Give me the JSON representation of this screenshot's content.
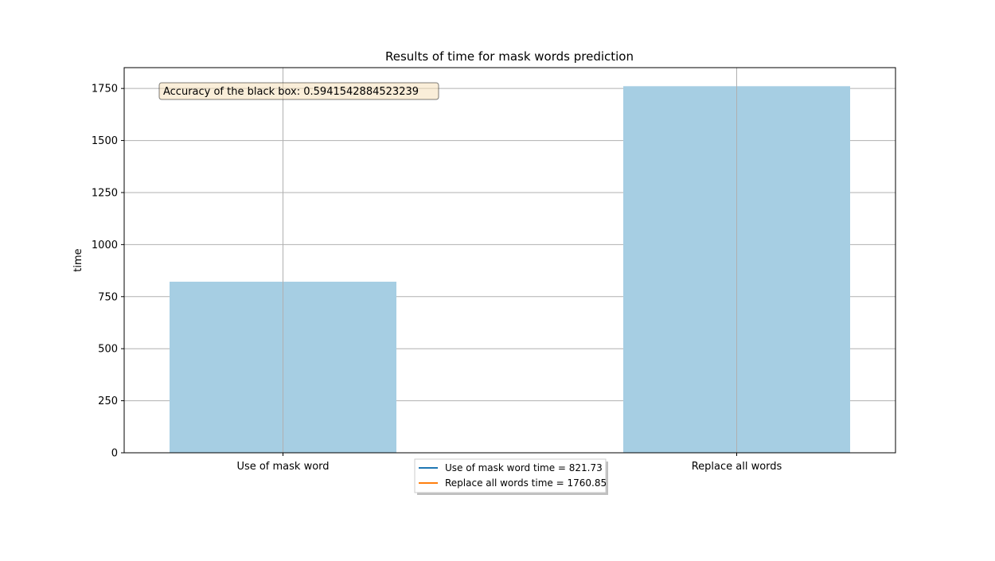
{
  "chart_data": {
    "type": "bar",
    "title": "Results of time for mask words prediction",
    "xlabel": "",
    "ylabel": "time",
    "categories": [
      "Use of mask word",
      "Replace all words"
    ],
    "values": [
      821.73,
      1760.85
    ],
    "ylim": [
      0,
      1850
    ],
    "yticks": [
      0,
      250,
      500,
      750,
      1000,
      1250,
      1500,
      1750
    ],
    "grid": true,
    "bar_color": "#a6cee3",
    "annotation": "Accuracy of the black box: 0.5941542884523239",
    "annotation_bg": "#f5deb3",
    "legend_position": "lower center, below axes",
    "legend": [
      {
        "label": "Use of mask word time = 821.73",
        "color": "#1f77b4"
      },
      {
        "label": "Replace all words time = 1760.85",
        "color": "#ff7f0e"
      }
    ]
  }
}
